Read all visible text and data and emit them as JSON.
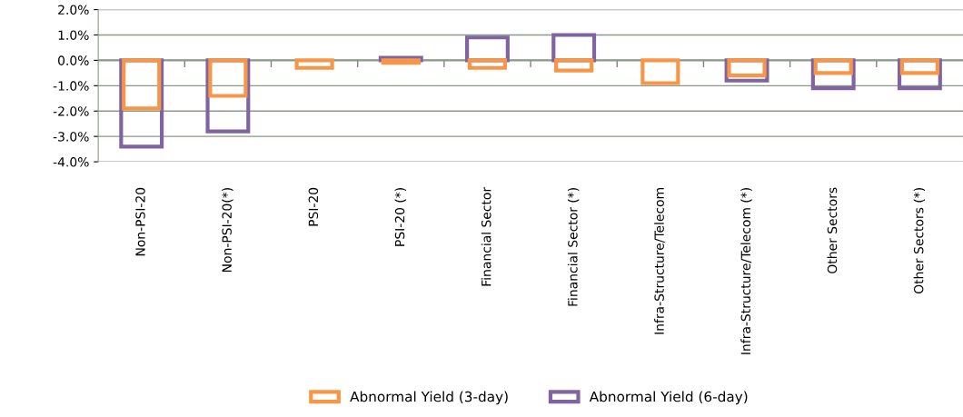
{
  "chart_data": {
    "type": "bar",
    "categories": [
      "Non-PSI-20",
      "Non-PSI-20(*)",
      "PSI-20",
      "PSI-20 (*)",
      "Financial Sector",
      "Financial Sector (*)",
      "Infra-Structure/Telecom",
      "Infra-Structure/Telecom (*)",
      "Other Sectors",
      "Other Sectors (*)"
    ],
    "series": [
      {
        "name": "Abnormal Yield (6-day)",
        "color": "#8064a2",
        "values": [
          -3.4,
          -2.8,
          null,
          0.1,
          0.9,
          1.0,
          null,
          -0.8,
          -1.1,
          -1.1
        ]
      },
      {
        "name": "Abnormal Yield (3-day)",
        "color": "#f79646",
        "values": [
          -1.9,
          -1.4,
          -0.3,
          -0.1,
          -0.3,
          -0.4,
          -0.9,
          -0.6,
          -0.5,
          -0.5
        ]
      }
    ],
    "ylim": [
      -4,
      2
    ],
    "yticks": [
      {
        "value": -4,
        "label": "-4.0%"
      },
      {
        "value": -3,
        "label": "-3.0%"
      },
      {
        "value": -2,
        "label": "-2.0%"
      },
      {
        "value": -1,
        "label": "-1.0%"
      },
      {
        "value": 0,
        "label": "0.0%"
      },
      {
        "value": 1,
        "label": "1.0%"
      },
      {
        "value": 2,
        "label": "2.0%"
      }
    ],
    "grid": "y",
    "legend": "bottom"
  }
}
